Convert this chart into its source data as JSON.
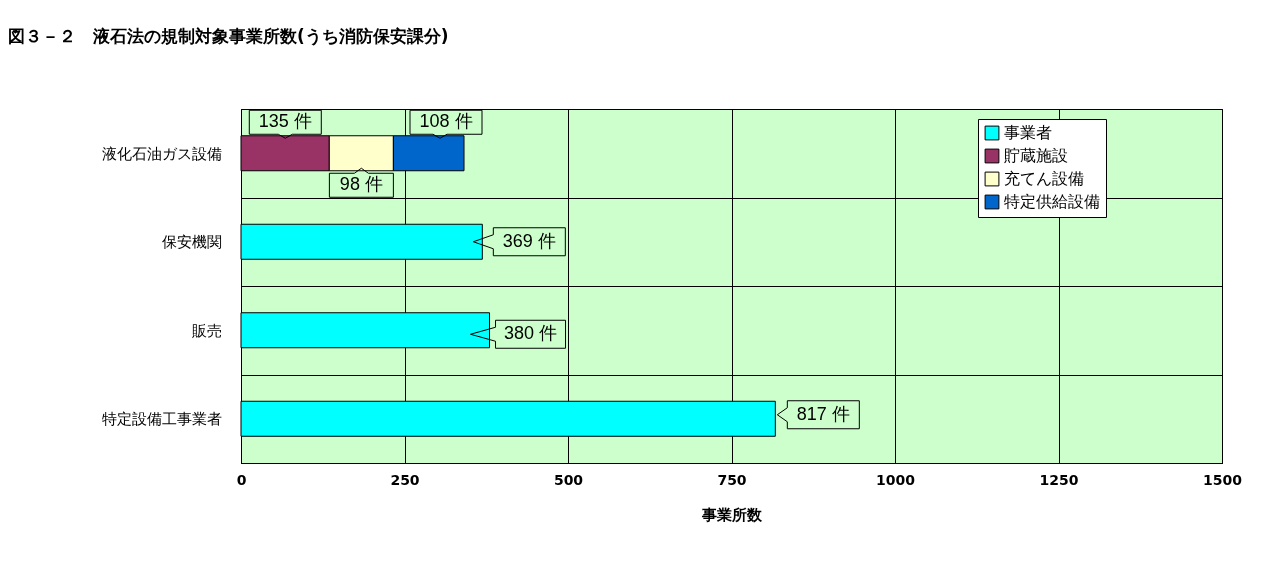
{
  "chart_data": {
    "type": "bar",
    "orientation": "horizontal",
    "stacked": true,
    "title": "図３－２　液石法の規制対象事業所数(うち消防保安課分)",
    "xlabel": "事業所数",
    "categories": [
      "液化石油ガス設備",
      "保安機関",
      "販売",
      "特定設備工事業者"
    ],
    "series": [
      {
        "name": "事業者",
        "color": "#00ffff",
        "values": [
          null,
          369,
          380,
          817
        ],
        "value_labels": [
          null,
          "369 件",
          "380 件",
          "817 件"
        ]
      },
      {
        "name": "貯蔵施設",
        "color": "#993366",
        "values": [
          135,
          null,
          null,
          null
        ],
        "value_labels": [
          "135 件",
          null,
          null,
          null
        ]
      },
      {
        "name": "充てん設備",
        "color": "#ffffcc",
        "values": [
          98,
          null,
          null,
          null
        ],
        "value_labels": [
          "98 件",
          null,
          null,
          null
        ]
      },
      {
        "name": "特定供給設備",
        "color": "#0066cc",
        "values": [
          108,
          null,
          null,
          null
        ],
        "value_labels": [
          "108 件",
          null,
          null,
          null
        ]
      }
    ],
    "xlim": [
      0,
      1500
    ],
    "xticks": [
      0,
      250,
      500,
      750,
      1000,
      1250,
      1500
    ],
    "grid": true,
    "legend": "top right"
  }
}
